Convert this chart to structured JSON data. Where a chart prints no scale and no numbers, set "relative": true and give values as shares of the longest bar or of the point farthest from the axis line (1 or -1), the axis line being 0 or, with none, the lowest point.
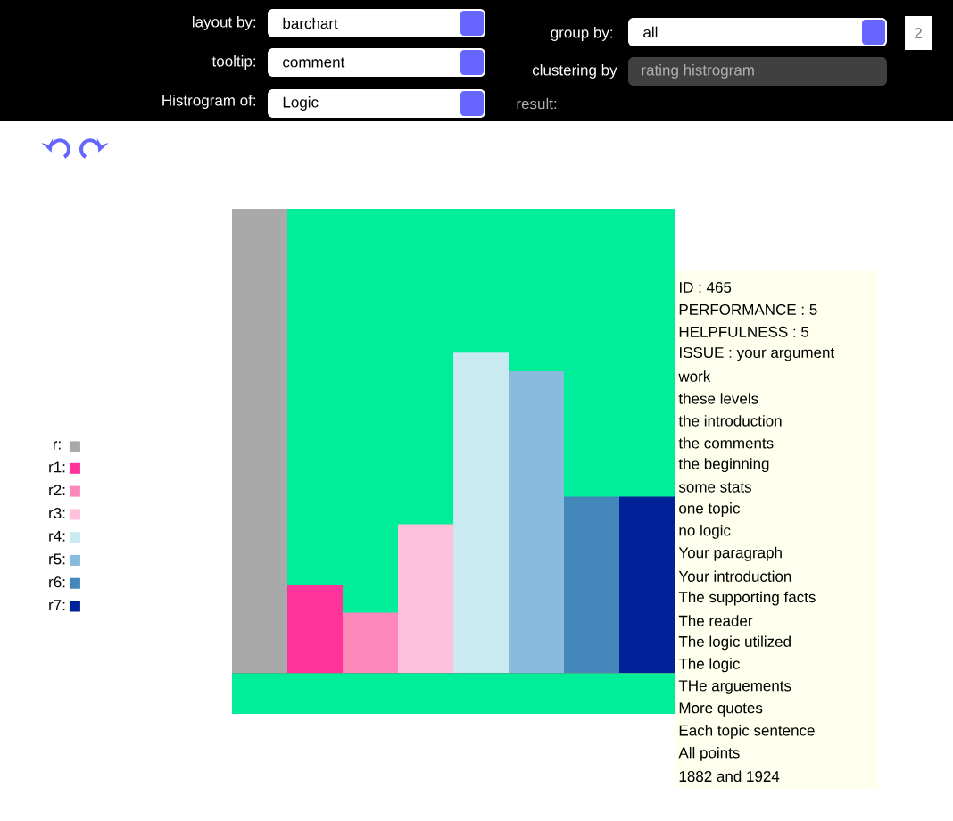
{
  "chart_data": {
    "type": "bar",
    "relative": true,
    "categories": [
      null,
      null,
      null,
      null,
      null,
      null,
      null,
      null
    ],
    "stacked": true,
    "series": [
      {
        "name": "r:",
        "color": "#a9a9a9",
        "values": [
          1,
          null,
          null,
          null,
          null,
          null,
          null,
          null
        ]
      },
      {
        "name": "r1:",
        "color": "#ff3399",
        "values": [
          null,
          0.19,
          null,
          null,
          null,
          null,
          null,
          null
        ]
      },
      {
        "name": "r2:",
        "color": "#ff88bb",
        "values": [
          null,
          null,
          0.13,
          null,
          null,
          null,
          null,
          null
        ]
      },
      {
        "name": "r3:",
        "color": "#ffc0dd",
        "values": [
          null,
          null,
          null,
          0.32,
          null,
          null,
          null,
          null
        ]
      },
      {
        "name": "r4:",
        "color": "#c8eaf0",
        "values": [
          null,
          null,
          null,
          null,
          0.69,
          null,
          null,
          null
        ]
      },
      {
        "name": "r5:",
        "color": "#88bbdd",
        "values": [
          null,
          null,
          null,
          null,
          null,
          0.65,
          null,
          null
        ]
      },
      {
        "name": "r6:",
        "color": "#4488bb",
        "values": [
          null,
          null,
          null,
          null,
          null,
          null,
          0.38,
          null
        ]
      },
      {
        "name": "r7:",
        "color": "#002299",
        "values": [
          null,
          null,
          null,
          null,
          null,
          null,
          null,
          0.38
        ]
      }
    ],
    "legend": "left",
    "annotations": [
      "layout by:",
      "barchart",
      "tooltip:",
      "comment",
      "Histrogram of:",
      "Logic",
      "group by:",
      "all",
      "clustering by",
      "rating histrogram",
      "result:",
      "2",
      "ID : 465",
      "PERFORMANCE : 5",
      "HELPFULNESS : 5",
      "ISSUE : your argument",
      "work",
      "these levels",
      "the introduction",
      "the comments",
      "the beginning",
      "some stats",
      "one topic",
      "no logic",
      "Your paragraph",
      "Your introduction",
      "The supporting facts",
      "The reader",
      "The logic utilized",
      "The logic",
      "THe arguements",
      "More quotes",
      "Each topic sentence",
      "All points",
      "1882 and 1924"
    ]
  }
}
